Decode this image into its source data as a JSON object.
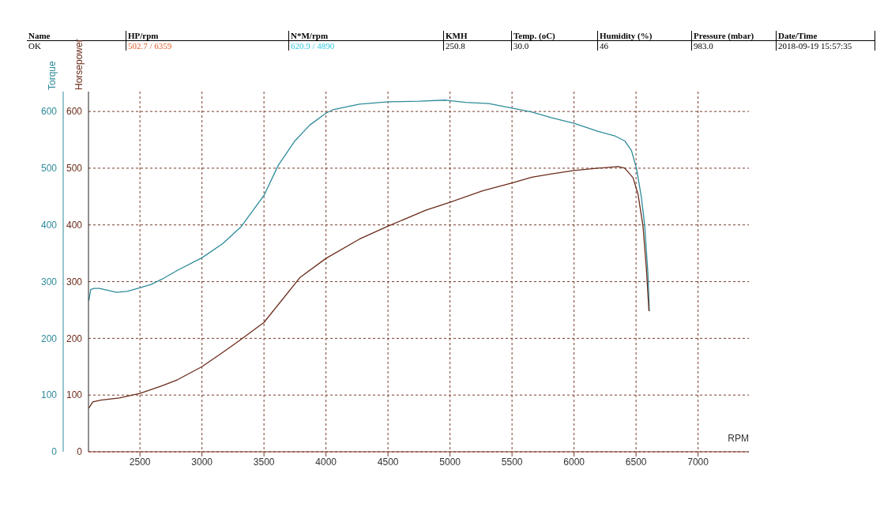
{
  "chart_data": {
    "type": "line",
    "annotations": [
      "Name",
      "HP/rpm",
      "N*M/rpm",
      "KMH",
      "Temp. (oC)",
      "Humidity (%)",
      "Pressure (mbar)",
      "Date/Time",
      "OK",
      "502.7 / 6359",
      "620.9 / 4890",
      "250.8",
      "30.0",
      "46",
      "983.0",
      "2018-09-19 15:57:35"
    ],
    "xlabel": "RPM",
    "ylabel": "Torque",
    "y2label": "Horsepower",
    "xlim": [
      2085,
      7410
    ],
    "xticks": [
      2500,
      3000,
      3500,
      4000,
      4500,
      5000,
      5500,
      6000,
      6500,
      7000
    ],
    "ylim": [
      0,
      635
    ],
    "yticks": [
      0,
      100,
      200,
      300,
      400,
      500,
      600
    ],
    "y2lim": [
      0,
      635
    ],
    "y2ticks": [
      0,
      100,
      200,
      300,
      400,
      500,
      600
    ],
    "grid": true,
    "legend": false,
    "marker": "none",
    "line_style": "solid",
    "series": [
      {
        "color": "#2e8b9a",
        "x": [
          2088,
          2103,
          2130,
          2173,
          2312,
          2397,
          2500,
          2590,
          2675,
          2803,
          3000,
          3167,
          3316,
          3500,
          3615,
          3749,
          3869,
          4000,
          4056,
          4270,
          4503,
          4751,
          4965,
          5126,
          5313,
          5500,
          5660,
          5821,
          6000,
          6195,
          6329,
          6409,
          6463,
          6503,
          6543,
          6570,
          6596,
          6607
        ],
        "values": [
          267,
          286,
          288,
          288,
          281,
          283,
          289,
          295,
          304,
          320,
          342,
          367,
          397,
          452,
          505,
          548,
          576,
          597,
          603,
          613,
          617,
          618,
          620,
          616,
          614,
          606,
          599,
          589,
          579,
          565,
          557,
          548,
          531,
          500,
          449,
          398,
          313,
          248
        ]
      },
      {
        "color": "#6b2b1a",
        "axis": "y2",
        "x": [
          2088,
          2120,
          2184,
          2333,
          2500,
          2675,
          2803,
          3000,
          3167,
          3295,
          3500,
          3789,
          4000,
          4270,
          4503,
          4805,
          5000,
          5262,
          5500,
          5660,
          5821,
          6000,
          6195,
          6356,
          6409,
          6476,
          6516,
          6556,
          6583,
          6604
        ],
        "values": [
          77,
          88,
          91,
          95,
          103,
          116,
          127,
          150,
          175,
          195,
          228,
          307,
          341,
          375,
          398,
          426,
          440,
          460,
          474,
          484,
          490,
          496,
          500,
          503,
          500,
          483,
          454,
          398,
          324,
          248
        ]
      }
    ]
  }
}
